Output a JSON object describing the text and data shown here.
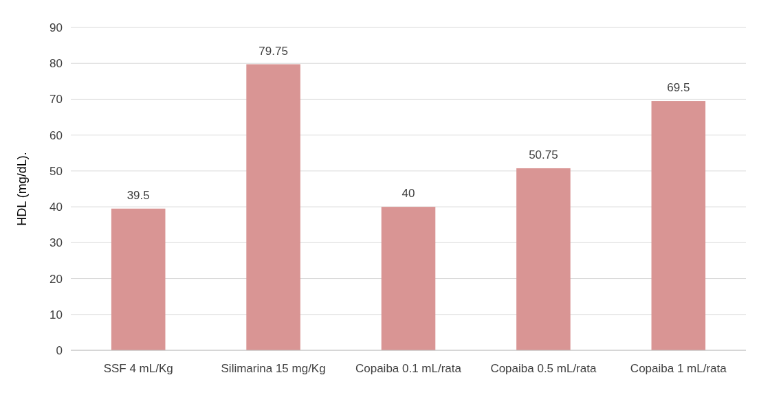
{
  "chart_data": {
    "type": "bar",
    "ylabel": "HDL (mg/dL).",
    "categories": [
      "SSF 4 mL/Kg",
      "Silimarina 15 mg/Kg",
      "Copaiba 0.1 mL/rata",
      "Copaiba 0.5 mL/rata",
      "Copaiba 1 mL/rata"
    ],
    "values": [
      39.5,
      79.75,
      40,
      50.75,
      69.5
    ],
    "color": "#d99594",
    "ylim": [
      0,
      90
    ],
    "yticks": [
      0,
      10,
      20,
      30,
      40,
      50,
      60,
      70,
      80,
      90
    ],
    "grid": "y",
    "data_labels": true
  }
}
